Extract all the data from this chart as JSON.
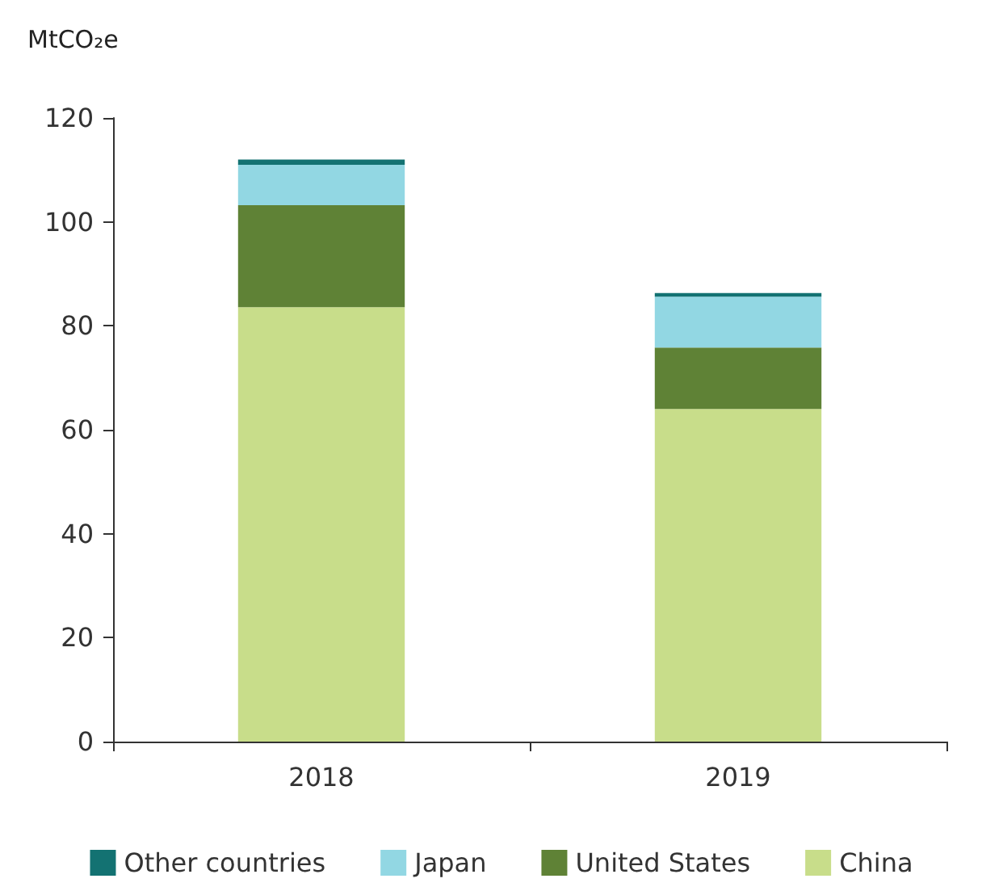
{
  "chart_data": {
    "type": "bar",
    "stacked": true,
    "ylabel": "MtCO₂e",
    "categories": [
      "2018",
      "2019"
    ],
    "series": [
      {
        "name": "China",
        "color": "#c8dd8a",
        "values": [
          83.6,
          64.0
        ]
      },
      {
        "name": "United States",
        "color": "#5f8236",
        "values": [
          19.6,
          11.8
        ]
      },
      {
        "name": "Japan",
        "color": "#92d7e3",
        "values": [
          7.8,
          9.8
        ]
      },
      {
        "name": "Other countries",
        "color": "#137272",
        "values": [
          1.0,
          0.7
        ]
      }
    ],
    "ylim": [
      0,
      120
    ],
    "yticks": [
      0,
      20,
      40,
      60,
      80,
      100,
      120
    ],
    "grid": false,
    "legend": "bottom"
  }
}
